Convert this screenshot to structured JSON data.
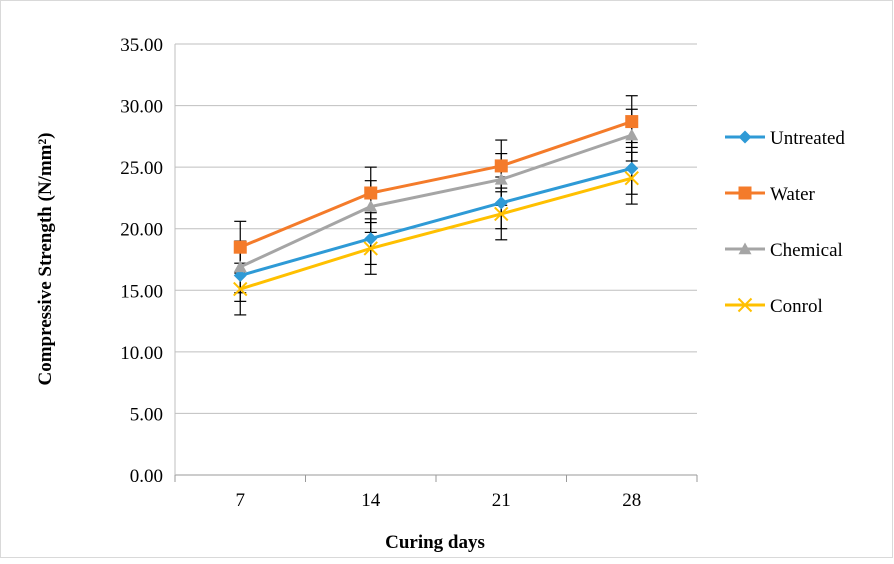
{
  "chart_data": {
    "type": "line",
    "title": "",
    "xlabel": "Curing days",
    "ylabel": "Compressive Strength (N/mm²)",
    "categories": [
      "7",
      "14",
      "21",
      "28"
    ],
    "yticks": [
      "0.00",
      "5.00",
      "10.00",
      "15.00",
      "20.00",
      "25.00",
      "30.00",
      "35.00"
    ],
    "ylim": [
      0,
      35
    ],
    "grid": "horizontal",
    "legend_position": "right",
    "error_bar": 2.1,
    "series": [
      {
        "name": "Untreated",
        "values": [
          16.2,
          19.2,
          22.1,
          24.9
        ],
        "color": "#2E9AD6",
        "marker": "diamond"
      },
      {
        "name": "Water",
        "values": [
          18.5,
          22.9,
          25.1,
          28.7
        ],
        "color": "#F47B2A",
        "marker": "square"
      },
      {
        "name": "Chemical",
        "values": [
          16.9,
          21.8,
          24.0,
          27.6
        ],
        "color": "#A5A5A5",
        "marker": "triangle"
      },
      {
        "name": "Conrol",
        "values": [
          15.1,
          18.4,
          21.2,
          24.1
        ],
        "color": "#FFC000",
        "marker": "x"
      }
    ]
  }
}
